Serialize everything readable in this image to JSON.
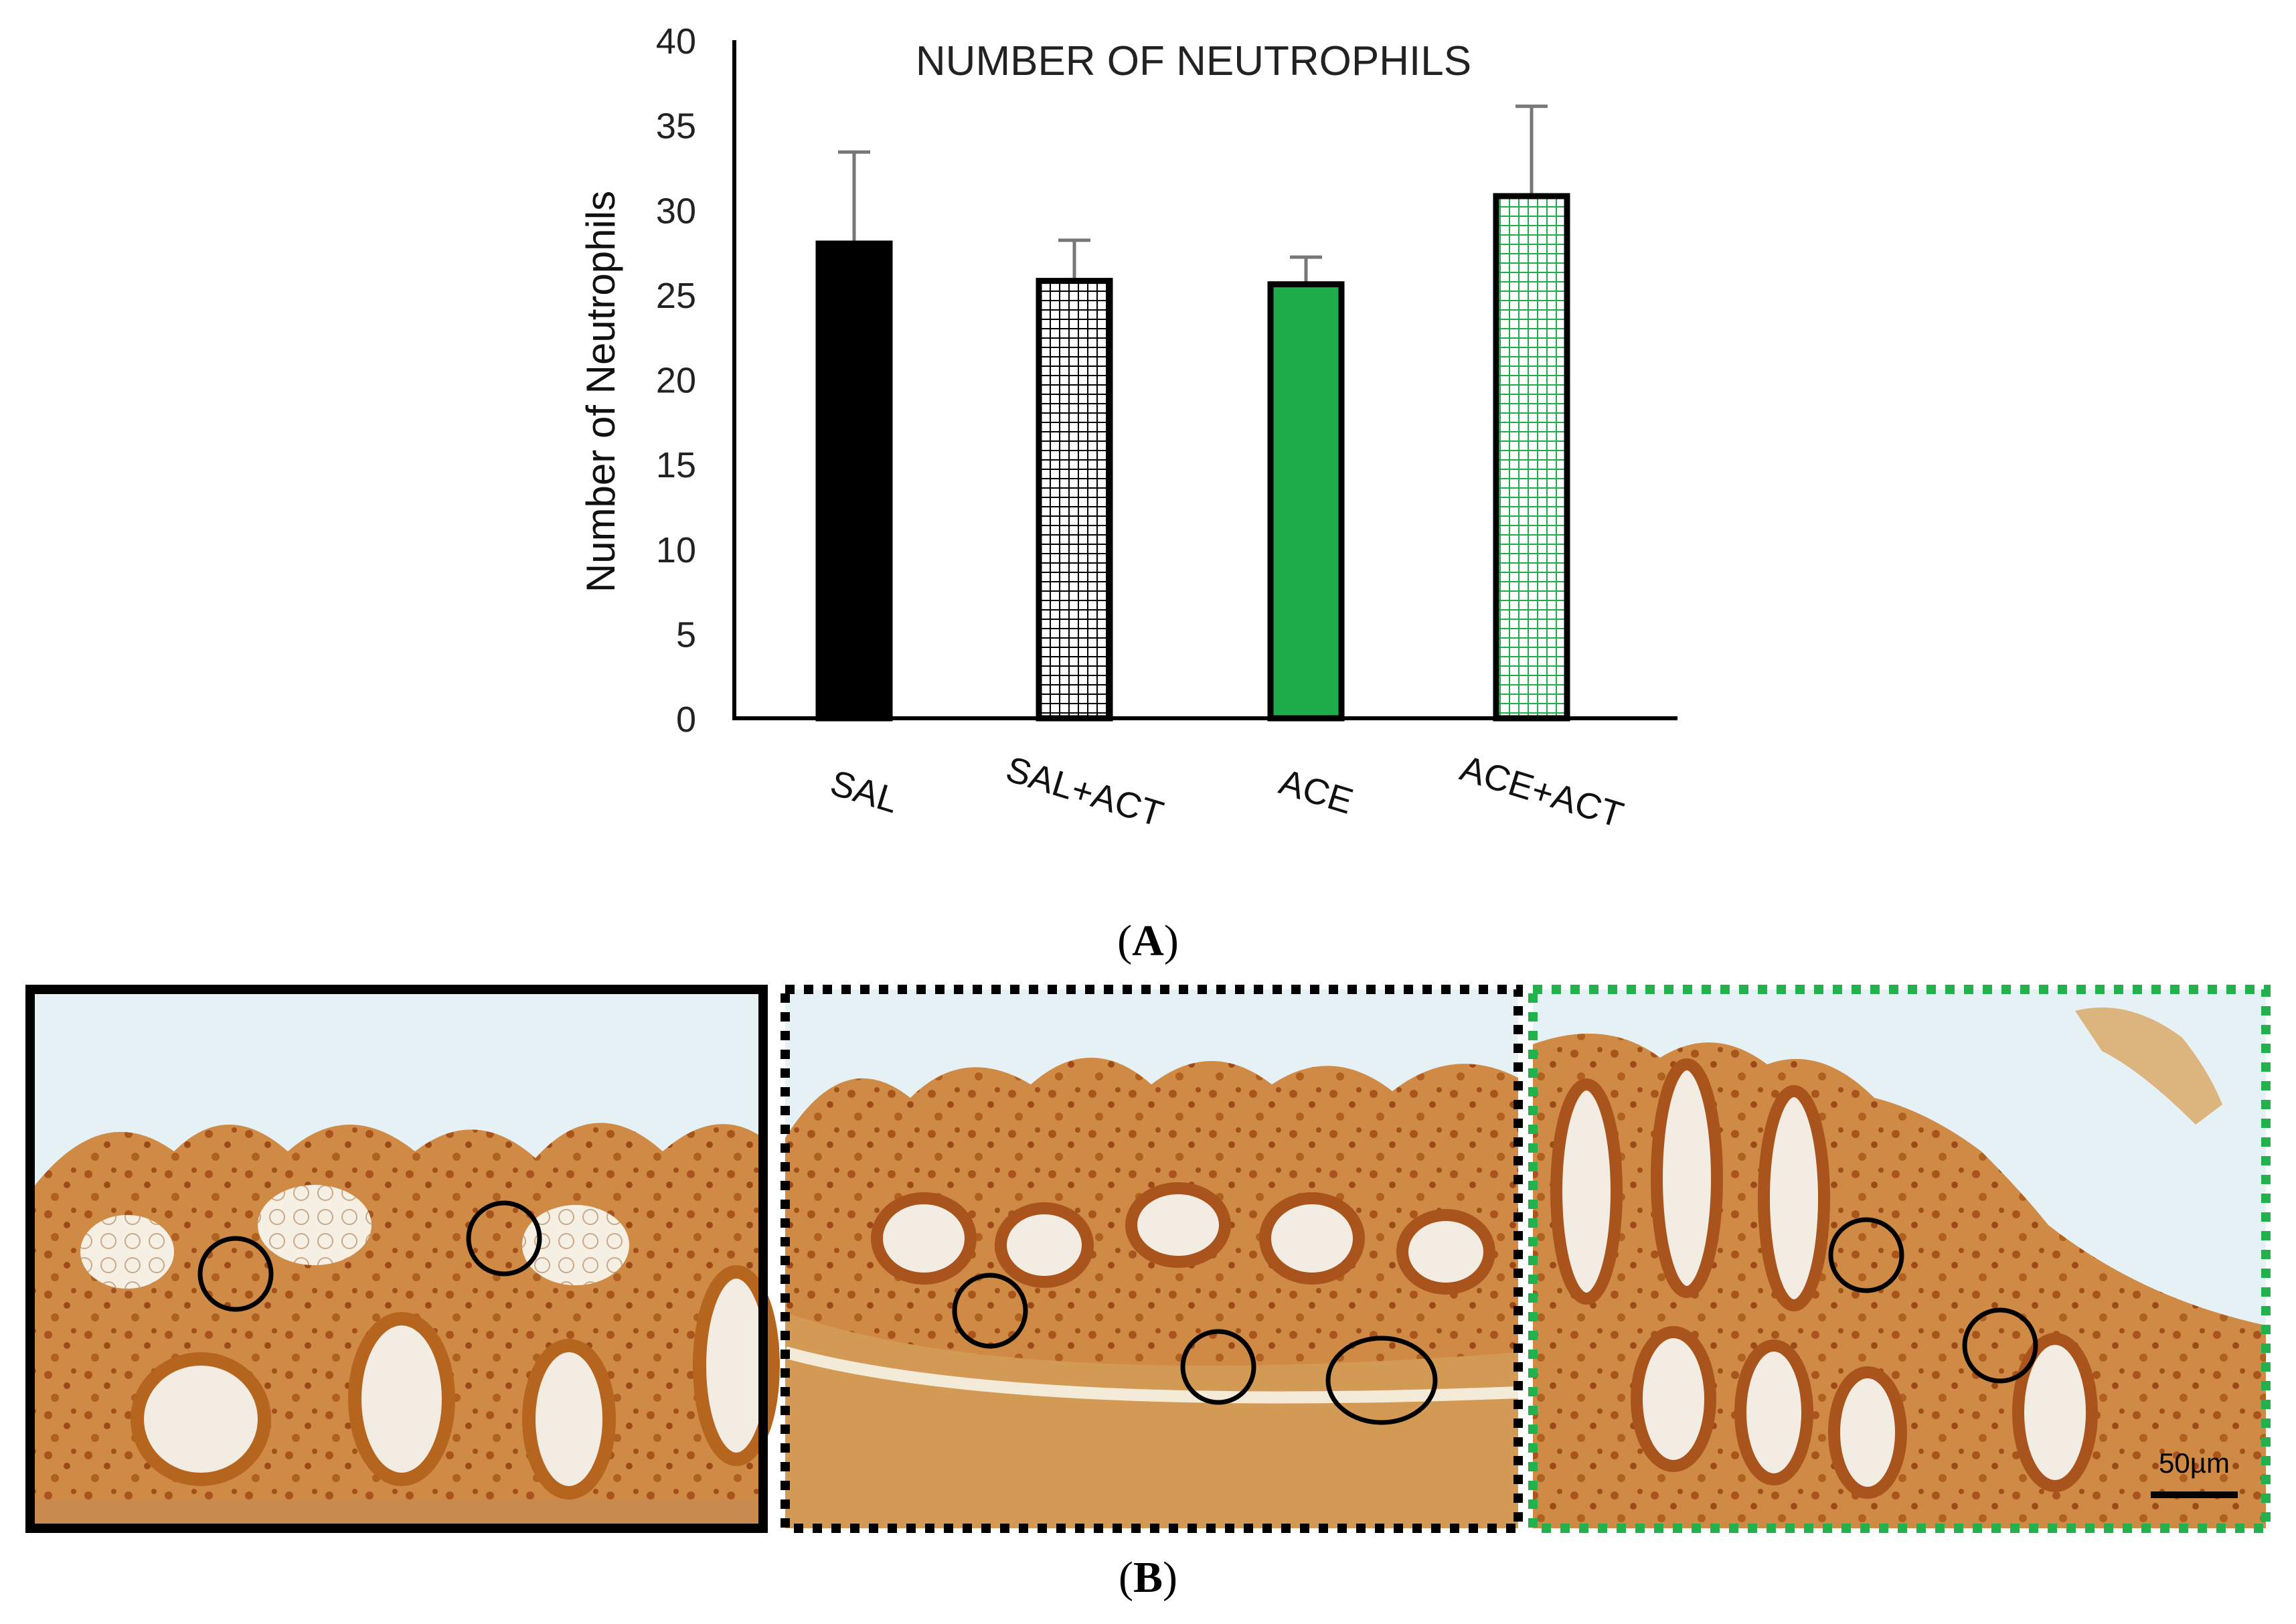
{
  "figure": {
    "panel_a_label": "A",
    "panel_b_label": "B",
    "scale_bar_label": "50µm",
    "micrograph_frames": [
      {
        "group": "SAL",
        "border": "solid",
        "border_color": "#000000"
      },
      {
        "group": "SAL+ACT",
        "border": "dotted",
        "border_color": "#000000"
      },
      {
        "group": "ACE+ACT",
        "border": "dotted",
        "border_color": "#22b14c"
      }
    ],
    "colors": {
      "black": "#000000",
      "green": "#1fad4b",
      "tissue_brown": "#b5651d",
      "background_blue": "#e6f1f6"
    }
  },
  "chart_data": {
    "type": "bar",
    "title": "NUMBER OF NEUTROPHILS",
    "xlabel": "",
    "ylabel": "Number of Neutrophils",
    "ylim": [
      0,
      40
    ],
    "yticks": [
      0,
      5,
      10,
      15,
      20,
      25,
      30,
      35,
      40
    ],
    "categories": [
      "SAL",
      "SAL+ACT",
      "ACE",
      "ACE+ACT"
    ],
    "values": [
      28,
      25.8,
      25.6,
      30.8
    ],
    "error_upper": [
      5.4,
      2.4,
      1.6,
      5.3
    ],
    "bar_styles": [
      {
        "fill": "#000000",
        "pattern": "solid"
      },
      {
        "fill": "#000000",
        "pattern": "grid"
      },
      {
        "fill": "#1fad4b",
        "pattern": "solid"
      },
      {
        "fill": "#1fad4b",
        "pattern": "grid"
      }
    ],
    "grid": false,
    "legend": "none"
  }
}
